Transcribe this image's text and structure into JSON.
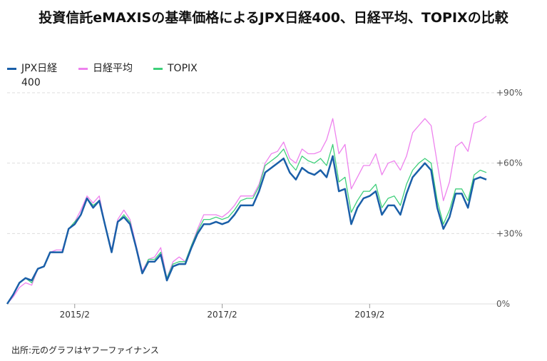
{
  "title": "投資信託eMAXISの基準価格によるJPX日経400、日経平均、TOPIXの比較",
  "source": "出所:元のグラフはヤフーファイナンス",
  "chart_data": {
    "type": "line",
    "title": "投資信託eMAXISの基準価格によるJPX日経400、日経平均、TOPIXの比較",
    "xlabel": "",
    "ylabel": "",
    "x_ticks": [
      "2015/2",
      "2017/2",
      "2019/2"
    ],
    "y_ticks": [
      "+90%",
      "+60%",
      "+30%",
      "0%"
    ],
    "y_tick_values": [
      90,
      60,
      30,
      0
    ],
    "ylim": [
      0,
      90
    ],
    "grid": "horizontal-dashed",
    "legend_position": "top-left",
    "series": [
      {
        "name": "JPX日経400",
        "color": "#1a5fa8",
        "values": [
          0,
          4,
          9,
          11,
          10,
          15,
          16,
          22,
          22,
          22,
          32,
          34,
          38,
          45,
          41,
          44,
          33,
          22,
          35,
          37,
          34,
          24,
          13,
          18,
          18,
          21,
          10,
          16,
          17,
          17,
          24,
          30,
          34,
          34,
          35,
          34,
          35,
          38,
          42,
          42,
          42,
          48,
          56,
          58,
          60,
          62,
          56,
          53,
          58,
          56,
          55,
          57,
          54,
          63,
          48,
          49,
          34,
          41,
          45,
          46,
          48,
          38,
          42,
          42,
          38,
          47,
          54,
          57,
          60,
          57,
          41,
          32,
          37,
          47,
          47,
          41,
          53,
          54,
          53
        ]
      },
      {
        "name": "日経平均",
        "color": "#ee82ee",
        "values": [
          0,
          3,
          7,
          9,
          8,
          15,
          16,
          22,
          23,
          23,
          32,
          35,
          40,
          46,
          43,
          46,
          33,
          23,
          36,
          40,
          36,
          25,
          14,
          19,
          20,
          24,
          11,
          18,
          20,
          18,
          25,
          32,
          38,
          38,
          38,
          37,
          39,
          42,
          46,
          46,
          46,
          51,
          60,
          64,
          65,
          69,
          62,
          60,
          66,
          64,
          64,
          65,
          70,
          79,
          64,
          68,
          49,
          54,
          59,
          59,
          64,
          55,
          60,
          61,
          57,
          63,
          73,
          76,
          79,
          76,
          60,
          44,
          52,
          67,
          69,
          65,
          77,
          78,
          80
        ]
      },
      {
        "name": "TOPIX",
        "color": "#3ecf7a",
        "values": [
          0,
          4,
          9,
          11,
          9,
          15,
          16,
          22,
          22,
          22,
          32,
          35,
          38,
          45,
          42,
          44,
          33,
          22,
          35,
          38,
          35,
          24,
          13,
          19,
          19,
          22,
          11,
          17,
          18,
          18,
          25,
          31,
          36,
          36,
          37,
          36,
          37,
          40,
          44,
          45,
          45,
          50,
          59,
          61,
          63,
          66,
          60,
          57,
          63,
          61,
          60,
          62,
          59,
          68,
          52,
          54,
          39,
          44,
          48,
          48,
          51,
          41,
          45,
          46,
          42,
          51,
          57,
          60,
          62,
          60,
          44,
          34,
          40,
          49,
          49,
          44,
          55,
          57,
          56
        ]
      }
    ]
  }
}
